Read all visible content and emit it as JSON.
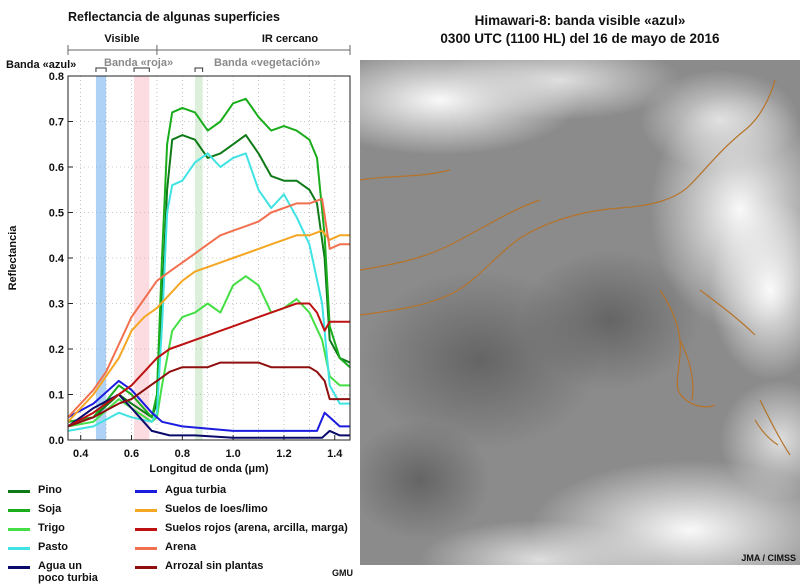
{
  "left_title": "Reflectancia de algunas superficies",
  "right_title": {
    "line1": "Himawari-8: banda visible «azul»",
    "line2": "0300 UTC (1100 HL) del 16 de mayo de 2016"
  },
  "credits": {
    "satellite": "JMA / CIMSS",
    "chart": "GMU"
  },
  "colors": {
    "blue_band": "#9fcaf3",
    "red_band": "#fbd6dc",
    "veg_band": "#d5ecd3",
    "coastline": "#b5732a"
  },
  "chart_data": {
    "type": "line",
    "title": "Reflectancia de algunas superficies",
    "xlabel": "Longitud de onda (μm)",
    "ylabel": "Reflectancia",
    "xlim": [
      0.35,
      1.46
    ],
    "ylim": [
      0,
      0.8
    ],
    "xticks": [
      "0.4",
      "0.6",
      "0.8",
      "1.0",
      "1.2",
      "1.4"
    ],
    "xtick_values": [
      0.4,
      0.6,
      0.8,
      1.0,
      1.2,
      1.4
    ],
    "yticks": [
      "0.0",
      "0.1",
      "0.2",
      "0.3",
      "0.4",
      "0.5",
      "0.6",
      "0.7",
      "0.8"
    ],
    "ytick_values": [
      0.0,
      0.1,
      0.2,
      0.3,
      0.4,
      0.5,
      0.6,
      0.7,
      0.8
    ],
    "regions": [
      {
        "label": "Visible",
        "range": [
          0.35,
          0.7
        ]
      },
      {
        "label": "IR cercano",
        "range": [
          0.7,
          1.46
        ]
      }
    ],
    "bands": [
      {
        "label": "Banda «azul»",
        "range": [
          0.46,
          0.5
        ],
        "color": "#9fcaf3",
        "label_color": "#111111"
      },
      {
        "label": "Banda «roja»",
        "range": [
          0.61,
          0.67
        ],
        "color": "#fbd6dc",
        "label_color": "#8a8a8a"
      },
      {
        "label": "Banda «vegetación»",
        "range": [
          0.85,
          0.88
        ],
        "color": "#d5ecd3",
        "label_color": "#8a8a8a"
      }
    ],
    "series": [
      {
        "name": "Pino",
        "color": "#0f7a18",
        "points": [
          [
            0.35,
            0.04
          ],
          [
            0.45,
            0.05
          ],
          [
            0.55,
            0.1
          ],
          [
            0.6,
            0.08
          ],
          [
            0.68,
            0.05
          ],
          [
            0.7,
            0.08
          ],
          [
            0.72,
            0.3
          ],
          [
            0.74,
            0.55
          ],
          [
            0.76,
            0.66
          ],
          [
            0.8,
            0.67
          ],
          [
            0.85,
            0.66
          ],
          [
            0.9,
            0.62
          ],
          [
            0.95,
            0.63
          ],
          [
            1.0,
            0.65
          ],
          [
            1.05,
            0.67
          ],
          [
            1.1,
            0.63
          ],
          [
            1.15,
            0.58
          ],
          [
            1.2,
            0.57
          ],
          [
            1.25,
            0.57
          ],
          [
            1.3,
            0.55
          ],
          [
            1.33,
            0.52
          ],
          [
            1.36,
            0.4
          ],
          [
            1.38,
            0.22
          ],
          [
            1.42,
            0.18
          ],
          [
            1.46,
            0.17
          ]
        ]
      },
      {
        "name": "Soja",
        "color": "#19ad1c",
        "points": [
          [
            0.35,
            0.04
          ],
          [
            0.45,
            0.05
          ],
          [
            0.55,
            0.12
          ],
          [
            0.6,
            0.1
          ],
          [
            0.68,
            0.05
          ],
          [
            0.7,
            0.1
          ],
          [
            0.72,
            0.4
          ],
          [
            0.74,
            0.65
          ],
          [
            0.76,
            0.72
          ],
          [
            0.8,
            0.73
          ],
          [
            0.85,
            0.72
          ],
          [
            0.9,
            0.68
          ],
          [
            0.95,
            0.7
          ],
          [
            1.0,
            0.74
          ],
          [
            1.05,
            0.75
          ],
          [
            1.1,
            0.71
          ],
          [
            1.15,
            0.68
          ],
          [
            1.2,
            0.69
          ],
          [
            1.25,
            0.68
          ],
          [
            1.3,
            0.66
          ],
          [
            1.33,
            0.62
          ],
          [
            1.36,
            0.45
          ],
          [
            1.38,
            0.25
          ],
          [
            1.42,
            0.18
          ],
          [
            1.46,
            0.16
          ]
        ]
      },
      {
        "name": "Trigo",
        "color": "#44df44",
        "points": [
          [
            0.35,
            0.03
          ],
          [
            0.45,
            0.04
          ],
          [
            0.55,
            0.09
          ],
          [
            0.6,
            0.07
          ],
          [
            0.68,
            0.04
          ],
          [
            0.7,
            0.05
          ],
          [
            0.72,
            0.12
          ],
          [
            0.76,
            0.24
          ],
          [
            0.8,
            0.27
          ],
          [
            0.85,
            0.28
          ],
          [
            0.9,
            0.3
          ],
          [
            0.95,
            0.28
          ],
          [
            1.0,
            0.34
          ],
          [
            1.05,
            0.36
          ],
          [
            1.1,
            0.34
          ],
          [
            1.15,
            0.28
          ],
          [
            1.2,
            0.29
          ],
          [
            1.25,
            0.31
          ],
          [
            1.3,
            0.28
          ],
          [
            1.35,
            0.22
          ],
          [
            1.38,
            0.14
          ],
          [
            1.42,
            0.12
          ],
          [
            1.46,
            0.12
          ]
        ]
      },
      {
        "name": "Pasto",
        "color": "#3fe3e3",
        "points": [
          [
            0.35,
            0.02
          ],
          [
            0.45,
            0.03
          ],
          [
            0.55,
            0.06
          ],
          [
            0.6,
            0.05
          ],
          [
            0.68,
            0.04
          ],
          [
            0.7,
            0.06
          ],
          [
            0.72,
            0.25
          ],
          [
            0.74,
            0.5
          ],
          [
            0.76,
            0.56
          ],
          [
            0.8,
            0.57
          ],
          [
            0.85,
            0.61
          ],
          [
            0.9,
            0.63
          ],
          [
            0.95,
            0.6
          ],
          [
            1.0,
            0.62
          ],
          [
            1.05,
            0.63
          ],
          [
            1.1,
            0.55
          ],
          [
            1.15,
            0.51
          ],
          [
            1.2,
            0.54
          ],
          [
            1.25,
            0.49
          ],
          [
            1.3,
            0.43
          ],
          [
            1.35,
            0.3
          ],
          [
            1.38,
            0.12
          ],
          [
            1.42,
            0.08
          ],
          [
            1.46,
            0.08
          ]
        ]
      },
      {
        "name": "Agua un poco turbia",
        "color": "#0a0a6b",
        "points": [
          [
            0.35,
            0.03
          ],
          [
            0.45,
            0.07
          ],
          [
            0.55,
            0.1
          ],
          [
            0.6,
            0.07
          ],
          [
            0.68,
            0.02
          ],
          [
            0.75,
            0.01
          ],
          [
            0.85,
            0.01
          ],
          [
            1.0,
            0.005
          ],
          [
            1.2,
            0.005
          ],
          [
            1.35,
            0.005
          ],
          [
            1.38,
            0.02
          ],
          [
            1.42,
            0.01
          ],
          [
            1.46,
            0.01
          ]
        ]
      },
      {
        "name": "Agua turbia",
        "color": "#1c1ce0",
        "points": [
          [
            0.35,
            0.05
          ],
          [
            0.45,
            0.08
          ],
          [
            0.55,
            0.13
          ],
          [
            0.6,
            0.11
          ],
          [
            0.68,
            0.06
          ],
          [
            0.72,
            0.04
          ],
          [
            0.8,
            0.03
          ],
          [
            0.9,
            0.025
          ],
          [
            1.0,
            0.02
          ],
          [
            1.2,
            0.02
          ],
          [
            1.33,
            0.02
          ],
          [
            1.36,
            0.06
          ],
          [
            1.38,
            0.05
          ],
          [
            1.42,
            0.03
          ],
          [
            1.46,
            0.03
          ]
        ]
      },
      {
        "name": "Suelos de loes/limo",
        "color": "#f5a622",
        "points": [
          [
            0.35,
            0.04
          ],
          [
            0.45,
            0.1
          ],
          [
            0.55,
            0.18
          ],
          [
            0.6,
            0.24
          ],
          [
            0.65,
            0.27
          ],
          [
            0.7,
            0.29
          ],
          [
            0.75,
            0.32
          ],
          [
            0.8,
            0.35
          ],
          [
            0.85,
            0.37
          ],
          [
            0.9,
            0.38
          ],
          [
            0.95,
            0.39
          ],
          [
            1.0,
            0.4
          ],
          [
            1.05,
            0.41
          ],
          [
            1.1,
            0.42
          ],
          [
            1.15,
            0.43
          ],
          [
            1.2,
            0.44
          ],
          [
            1.25,
            0.45
          ],
          [
            1.3,
            0.45
          ],
          [
            1.35,
            0.46
          ],
          [
            1.38,
            0.44
          ],
          [
            1.42,
            0.45
          ],
          [
            1.46,
            0.45
          ]
        ]
      },
      {
        "name": "Suelos rojos (arena, arcilla, marga)",
        "color": "#be1111",
        "points": [
          [
            0.35,
            0.03
          ],
          [
            0.45,
            0.06
          ],
          [
            0.55,
            0.1
          ],
          [
            0.6,
            0.12
          ],
          [
            0.65,
            0.15
          ],
          [
            0.7,
            0.18
          ],
          [
            0.75,
            0.2
          ],
          [
            0.8,
            0.21
          ],
          [
            0.85,
            0.22
          ],
          [
            0.9,
            0.23
          ],
          [
            0.95,
            0.24
          ],
          [
            1.0,
            0.25
          ],
          [
            1.05,
            0.26
          ],
          [
            1.1,
            0.27
          ],
          [
            1.15,
            0.28
          ],
          [
            1.2,
            0.29
          ],
          [
            1.25,
            0.3
          ],
          [
            1.3,
            0.3
          ],
          [
            1.33,
            0.28
          ],
          [
            1.36,
            0.24
          ],
          [
            1.38,
            0.26
          ],
          [
            1.42,
            0.26
          ],
          [
            1.46,
            0.26
          ]
        ]
      },
      {
        "name": "Arena",
        "color": "#f2704f",
        "points": [
          [
            0.35,
            0.05
          ],
          [
            0.45,
            0.11
          ],
          [
            0.5,
            0.15
          ],
          [
            0.55,
            0.21
          ],
          [
            0.6,
            0.27
          ],
          [
            0.65,
            0.31
          ],
          [
            0.7,
            0.35
          ],
          [
            0.75,
            0.37
          ],
          [
            0.8,
            0.39
          ],
          [
            0.85,
            0.41
          ],
          [
            0.9,
            0.43
          ],
          [
            0.95,
            0.45
          ],
          [
            1.0,
            0.46
          ],
          [
            1.05,
            0.47
          ],
          [
            1.1,
            0.48
          ],
          [
            1.15,
            0.5
          ],
          [
            1.2,
            0.51
          ],
          [
            1.25,
            0.52
          ],
          [
            1.3,
            0.52
          ],
          [
            1.35,
            0.53
          ],
          [
            1.38,
            0.42
          ],
          [
            1.42,
            0.43
          ],
          [
            1.46,
            0.43
          ]
        ]
      },
      {
        "name": "Arrozal sin plantas",
        "color": "#8f0f0f",
        "points": [
          [
            0.35,
            0.03
          ],
          [
            0.45,
            0.05
          ],
          [
            0.55,
            0.08
          ],
          [
            0.6,
            0.09
          ],
          [
            0.65,
            0.11
          ],
          [
            0.7,
            0.13
          ],
          [
            0.75,
            0.15
          ],
          [
            0.8,
            0.16
          ],
          [
            0.85,
            0.16
          ],
          [
            0.9,
            0.16
          ],
          [
            0.95,
            0.17
          ],
          [
            1.0,
            0.17
          ],
          [
            1.05,
            0.17
          ],
          [
            1.1,
            0.17
          ],
          [
            1.15,
            0.16
          ],
          [
            1.2,
            0.16
          ],
          [
            1.25,
            0.16
          ],
          [
            1.3,
            0.16
          ],
          [
            1.33,
            0.15
          ],
          [
            1.36,
            0.13
          ],
          [
            1.38,
            0.09
          ],
          [
            1.42,
            0.09
          ],
          [
            1.46,
            0.09
          ]
        ]
      }
    ]
  },
  "legend": {
    "left": [
      {
        "label": "Pino",
        "color": "#0f7a18"
      },
      {
        "label": "Soja",
        "color": "#19ad1c"
      },
      {
        "label": "Trigo",
        "color": "#44df44"
      },
      {
        "label": "Pasto",
        "color": "#3fe3e3"
      },
      {
        "label": "Agua un\npoco turbia",
        "color": "#0a0a6b"
      }
    ],
    "right": [
      {
        "label": "Agua turbia",
        "color": "#1c1ce0"
      },
      {
        "label": "Suelos de loes/limo",
        "color": "#f5a622"
      },
      {
        "label": "Suelos rojos (arena, arcilla, marga)",
        "color": "#be1111"
      },
      {
        "label": "Arena",
        "color": "#f2704f"
      },
      {
        "label": "Arrozal sin plantas",
        "color": "#8f0f0f"
      }
    ]
  }
}
